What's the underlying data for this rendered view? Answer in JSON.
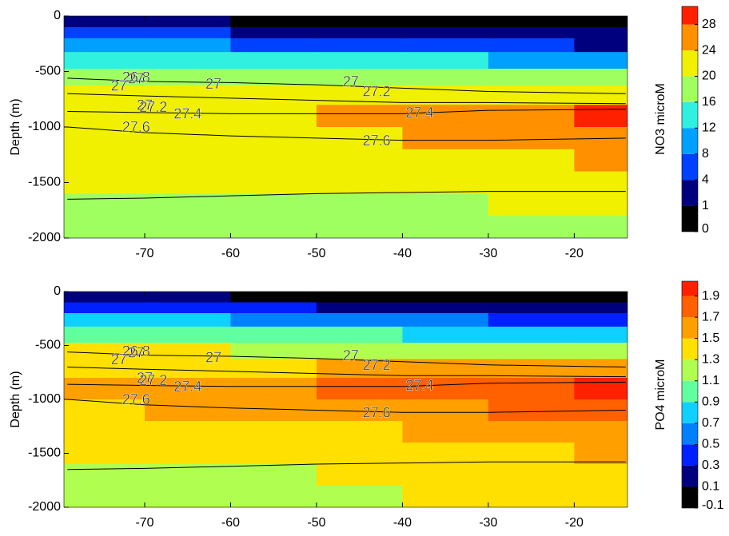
{
  "chart_data": [
    {
      "type": "contour",
      "ylabel": "Depth (m)",
      "xlim": [
        -79.4,
        -13.8
      ],
      "ylim": [
        -2000,
        0
      ],
      "xticks": [
        -70,
        -60,
        -50,
        -40,
        -30,
        -20
      ],
      "yticks": [
        0,
        -500,
        -1000,
        -1500,
        -2000
      ],
      "field": {
        "x": [
          -75,
          -65,
          -55,
          -45,
          -35,
          -25,
          -15
        ],
        "depth": [
          -50,
          -150,
          -250,
          -400,
          -550,
          -700,
          -900,
          -1100,
          -1300,
          -1500,
          -1700,
          -1900
        ],
        "values": [
          [
            1,
            1,
            0.5,
            0.5,
            0.5,
            0.5,
            0.5
          ],
          [
            4,
            4,
            3,
            2,
            2,
            1,
            1
          ],
          [
            9,
            8,
            7,
            6,
            5,
            4,
            3
          ],
          [
            15,
            14,
            14,
            13,
            12,
            11,
            10
          ],
          [
            19,
            19,
            19,
            18,
            17,
            17,
            16
          ],
          [
            21,
            21,
            21,
            22,
            22,
            22,
            22
          ],
          [
            22,
            22,
            23,
            24,
            25,
            27,
            28
          ],
          [
            22,
            22,
            22,
            23,
            24,
            25,
            26
          ],
          [
            21,
            21,
            21,
            21,
            22,
            23,
            24
          ],
          [
            20,
            20,
            20,
            20,
            20,
            21,
            22
          ],
          [
            19,
            19,
            19,
            19,
            19,
            20,
            20
          ],
          [
            17,
            18,
            18,
            19,
            19,
            19,
            19
          ]
        ]
      },
      "contours": [
        {
          "x": [
            -79,
            -70,
            -60,
            -50,
            -40,
            -30,
            -14
          ],
          "y": [
            -560,
            -590,
            -600,
            -620,
            -650,
            -680,
            -700
          ]
        },
        {
          "x": [
            -79,
            -70,
            -60,
            -50,
            -40,
            -30,
            -14
          ],
          "y": [
            -700,
            -720,
            -740,
            -760,
            -780,
            -780,
            -790
          ]
        },
        {
          "x": [
            -79,
            -70,
            -60,
            -50,
            -40,
            -30,
            -14
          ],
          "y": [
            -860,
            -870,
            -880,
            -880,
            -880,
            -850,
            -840
          ]
        },
        {
          "x": [
            -79,
            -70,
            -60,
            -50,
            -40,
            -30,
            -14
          ],
          "y": [
            -1000,
            -1050,
            -1080,
            -1100,
            -1120,
            -1120,
            -1100
          ]
        },
        {
          "x": [
            -79,
            -70,
            -60,
            -50,
            -40,
            -30,
            -14
          ],
          "y": [
            -1650,
            -1640,
            -1620,
            -1600,
            -1590,
            -1580,
            -1580
          ]
        }
      ],
      "labels": [
        {
          "text": "26.8",
          "x": -71,
          "y": -560
        },
        {
          "text": "27",
          "x": -71,
          "y": -575
        },
        {
          "text": "27",
          "x": -73,
          "y": -640
        },
        {
          "text": "27",
          "x": -62,
          "y": -620
        },
        {
          "text": "27",
          "x": -46,
          "y": -600
        },
        {
          "text": "27.2",
          "x": -43,
          "y": -690
        },
        {
          "text": "27",
          "x": -70,
          "y": -810
        },
        {
          "text": "27.2",
          "x": -69,
          "y": -830
        },
        {
          "text": "27.4",
          "x": -65,
          "y": -890
        },
        {
          "text": "27.4",
          "x": -38,
          "y": -880
        },
        {
          "text": "27.6",
          "x": -71,
          "y": -1010
        },
        {
          "text": "27.6",
          "x": -43,
          "y": -1130
        }
      ],
      "colorbar": {
        "label": "NO3 microM",
        "ticks": [
          0,
          1,
          4,
          8,
          12,
          16,
          20,
          24,
          28
        ],
        "colors": [
          "#000000",
          "#00007f",
          "#0040ff",
          "#00a0ff",
          "#30f0e0",
          "#a0ff60",
          "#f0f000",
          "#ff9000",
          "#ff2000"
        ]
      }
    },
    {
      "type": "contour",
      "ylabel": "Depth (m)",
      "xlim": [
        -79.4,
        -13.8
      ],
      "ylim": [
        -2000,
        0
      ],
      "xticks": [
        -70,
        -60,
        -50,
        -40,
        -30,
        -20
      ],
      "yticks": [
        0,
        -500,
        -1000,
        -1500,
        -2000
      ],
      "field": {
        "x": [
          -75,
          -65,
          -55,
          -45,
          -35,
          -25,
          -15
        ],
        "depth": [
          -50,
          -150,
          -250,
          -400,
          -550,
          -700,
          -900,
          -1100,
          -1300,
          -1500,
          -1700,
          -1900
        ],
        "values": [
          [
            0.1,
            0.1,
            0,
            0,
            0,
            0,
            0
          ],
          [
            0.4,
            0.4,
            0.3,
            0.2,
            0.2,
            0.1,
            0.1
          ],
          [
            0.7,
            0.7,
            0.6,
            0.5,
            0.5,
            0.4,
            0.3
          ],
          [
            1.0,
            1.0,
            0.9,
            0.9,
            0.8,
            0.8,
            0.7
          ],
          [
            1.3,
            1.3,
            1.2,
            1.2,
            1.2,
            1.1,
            1.1
          ],
          [
            1.4,
            1.4,
            1.4,
            1.5,
            1.5,
            1.5,
            1.5
          ],
          [
            1.5,
            1.5,
            1.6,
            1.7,
            1.7,
            1.8,
            1.9
          ],
          [
            1.4,
            1.5,
            1.5,
            1.6,
            1.6,
            1.7,
            1.7
          ],
          [
            1.3,
            1.4,
            1.4,
            1.4,
            1.5,
            1.5,
            1.6
          ],
          [
            1.3,
            1.3,
            1.3,
            1.4,
            1.4,
            1.4,
            1.5
          ],
          [
            1.2,
            1.2,
            1.2,
            1.3,
            1.3,
            1.4,
            1.4
          ],
          [
            1.2,
            1.2,
            1.2,
            1.2,
            1.3,
            1.3,
            1.3
          ]
        ]
      },
      "contours": [
        {
          "x": [
            -79,
            -70,
            -60,
            -50,
            -40,
            -30,
            -14
          ],
          "y": [
            -560,
            -590,
            -600,
            -620,
            -650,
            -680,
            -700
          ]
        },
        {
          "x": [
            -79,
            -70,
            -60,
            -50,
            -40,
            -30,
            -14
          ],
          "y": [
            -700,
            -720,
            -740,
            -760,
            -780,
            -780,
            -790
          ]
        },
        {
          "x": [
            -79,
            -70,
            -60,
            -50,
            -40,
            -30,
            -14
          ],
          "y": [
            -860,
            -870,
            -880,
            -880,
            -880,
            -850,
            -840
          ]
        },
        {
          "x": [
            -79,
            -70,
            -60,
            -50,
            -40,
            -30,
            -14
          ],
          "y": [
            -1000,
            -1050,
            -1080,
            -1100,
            -1120,
            -1120,
            -1100
          ]
        },
        {
          "x": [
            -79,
            -70,
            -60,
            -50,
            -40,
            -30,
            -14
          ],
          "y": [
            -1650,
            -1640,
            -1620,
            -1600,
            -1590,
            -1580,
            -1580
          ]
        }
      ],
      "labels": [
        {
          "text": "26.8",
          "x": -71,
          "y": -560
        },
        {
          "text": "27",
          "x": -71,
          "y": -575
        },
        {
          "text": "27",
          "x": -73,
          "y": -640
        },
        {
          "text": "27",
          "x": -62,
          "y": -620
        },
        {
          "text": "27",
          "x": -46,
          "y": -600
        },
        {
          "text": "27.2",
          "x": -43,
          "y": -690
        },
        {
          "text": "27",
          "x": -70,
          "y": -810
        },
        {
          "text": "27.2",
          "x": -69,
          "y": -830
        },
        {
          "text": "27.4",
          "x": -65,
          "y": -890
        },
        {
          "text": "27.4",
          "x": -38,
          "y": -880
        },
        {
          "text": "27.6",
          "x": -71,
          "y": -1010
        },
        {
          "text": "27.6",
          "x": -43,
          "y": -1130
        }
      ],
      "colorbar": {
        "label": "PO4 microM",
        "ticks": [
          -0.1,
          0.1,
          0.3,
          0.5,
          0.7,
          0.9,
          1.1,
          1.3,
          1.5,
          1.7,
          1.9
        ],
        "colors": [
          "#000000",
          "#00007f",
          "#0020ff",
          "#0080ff",
          "#10d0ff",
          "#60ffa0",
          "#b0ff50",
          "#ffe000",
          "#ffa000",
          "#ff6000",
          "#ff2000"
        ]
      }
    }
  ]
}
